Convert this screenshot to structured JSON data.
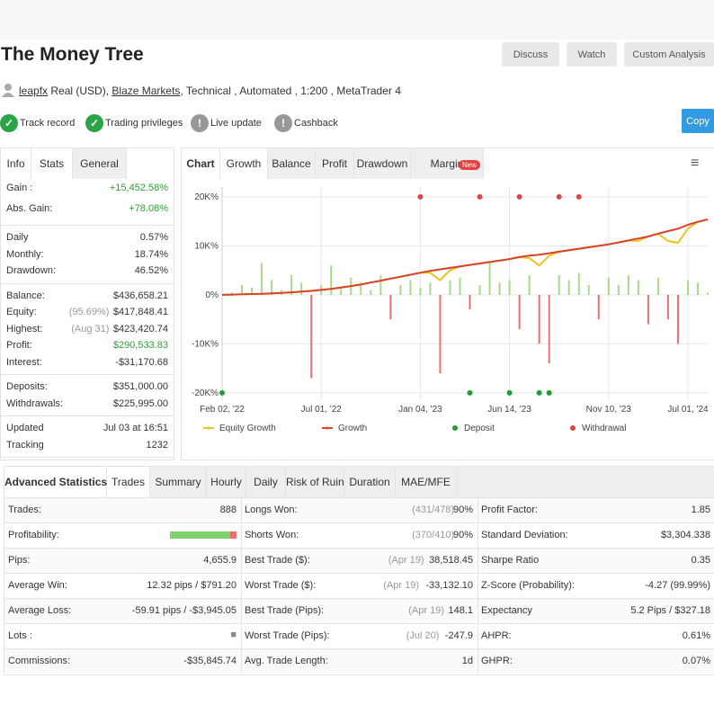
{
  "header": {
    "title": "The Money Tree",
    "buttons": [
      "Discuss",
      "Watch",
      "Custom Analysis"
    ],
    "user": "leapfx",
    "account_before": "Real (USD),",
    "broker": "Blaze Markets",
    "account_after": ", Technical , Automated , 1:200 , MetaTrader 4",
    "badges": [
      "Track record",
      "Trading privileges",
      "Live update",
      "Cashback"
    ],
    "copy": "Copy"
  },
  "stats": {
    "tabs": [
      "Info",
      "Stats",
      "General"
    ],
    "groups": [
      [
        {
          "label": "Gain :",
          "value": "+15,452.58%",
          "color": "#2f9e3a"
        },
        {
          "label": "Abs. Gain:",
          "value": "+78.08%",
          "color": "#2f9e3a"
        }
      ],
      [
        {
          "label": "Daily",
          "value": "0.57%"
        },
        {
          "label": "Monthly:",
          "value": "18.74%"
        },
        {
          "label": "Drawdown:",
          "value": "46.52%"
        }
      ],
      [
        {
          "label": "Balance:",
          "value": "$436,658.21"
        },
        {
          "label": "Equity:",
          "note": "(95.69%)",
          "value": "$417,848.41"
        },
        {
          "label": "Highest:",
          "note": "(Aug 31)",
          "value": "$423,420.74"
        },
        {
          "label": "Profit:",
          "value": "$290,533.83",
          "color": "#2f9e3a"
        },
        {
          "label": "Interest:",
          "value": "-$31,170.68"
        }
      ],
      [
        {
          "label": "Deposits:",
          "value": "$351,000.00"
        },
        {
          "label": "Withdrawals:",
          "value": "$225,995.00"
        }
      ],
      [
        {
          "label": "Updated",
          "value": "Jul 03 at 16:51"
        },
        {
          "label": "Tracking",
          "value": "1232"
        }
      ]
    ]
  },
  "chart_tabs": {
    "label": "Chart",
    "tabs": [
      "Growth",
      "Balance",
      "Profit",
      "Drawdown",
      "Margin"
    ],
    "badge": "New"
  },
  "chart_data": {
    "type": "line",
    "categories": [
      "Feb 02, '22",
      null,
      null,
      null,
      null,
      null,
      null,
      null,
      null,
      null,
      "Jul 01, '22",
      null,
      null,
      null,
      null,
      null,
      null,
      null,
      null,
      null,
      "Jan 04, '23",
      null,
      null,
      null,
      null,
      null,
      null,
      null,
      null,
      "Jun 14, '23",
      null,
      null,
      null,
      null,
      null,
      null,
      null,
      null,
      null,
      "Nov 10, '23",
      null,
      null,
      null,
      null,
      null,
      null,
      null,
      "Jul 01, '24",
      null,
      null
    ],
    "series": [
      {
        "name": "Equity Growth",
        "type": "line",
        "color": "#f2c21b",
        "values": [
          0,
          50,
          100,
          150,
          200,
          300,
          400,
          500,
          650,
          800,
          1000,
          1200,
          1500,
          1800,
          2100,
          2500,
          2900,
          3300,
          3700,
          4100,
          4500,
          4500,
          3000,
          5000,
          5800,
          6100,
          6400,
          6700,
          7000,
          7300,
          7700,
          7500,
          6000,
          8000,
          8800,
          9100,
          9400,
          9700,
          10000,
          10300,
          10700,
          11100,
          11000,
          11900,
          12500,
          11000,
          10600,
          13500,
          14900,
          15400
        ]
      },
      {
        "name": "Growth",
        "type": "line",
        "color": "#d8432a",
        "values": [
          0,
          50,
          100,
          150,
          200,
          300,
          400,
          500,
          650,
          800,
          1000,
          1200,
          1500,
          1800,
          2100,
          2500,
          2900,
          3300,
          3700,
          4100,
          4500,
          4900,
          5200,
          5500,
          5800,
          6100,
          6400,
          6700,
          7000,
          7300,
          7700,
          8000,
          8200,
          8500,
          8800,
          9100,
          9400,
          9700,
          10000,
          10300,
          10700,
          11100,
          11500,
          11900,
          12500,
          13000,
          13500,
          14300,
          14900,
          15400
        ]
      },
      {
        "name": "Deposit",
        "type": "scatter",
        "color": "#1e9e36",
        "values": [
          -20000,
          null,
          null,
          null,
          null,
          null,
          null,
          null,
          null,
          null,
          null,
          null,
          null,
          null,
          null,
          null,
          null,
          null,
          null,
          null,
          null,
          null,
          null,
          null,
          null,
          -20000,
          null,
          null,
          null,
          -20000,
          null,
          null,
          -20000,
          -20000,
          null,
          null,
          null,
          null,
          null,
          null,
          null,
          null,
          null,
          null,
          null,
          null,
          null,
          null,
          null,
          null
        ]
      },
      {
        "name": "Withdrawal",
        "type": "scatter",
        "color": "#e04646",
        "values": [
          null,
          null,
          null,
          null,
          null,
          null,
          null,
          null,
          null,
          null,
          null,
          null,
          null,
          null,
          null,
          null,
          null,
          null,
          null,
          null,
          20000,
          null,
          null,
          null,
          null,
          null,
          20000,
          null,
          null,
          null,
          20000,
          null,
          null,
          null,
          20000,
          null,
          20000,
          null,
          null,
          null,
          null,
          null,
          null,
          null,
          null,
          null,
          null,
          null,
          null,
          null
        ]
      },
      {
        "type": "bar",
        "color": "#a9d98c",
        "negative_color": "#e87070",
        "values": [
          0,
          500,
          2000,
          1500,
          6500,
          3000,
          1000,
          4000,
          2500,
          -17000,
          2000,
          6000,
          1500,
          3500,
          2500,
          1000,
          4000,
          -5000,
          2000,
          3000,
          1500,
          2500,
          -16000,
          3000,
          3500,
          -3000,
          2000,
          6500,
          2500,
          3000,
          -7000,
          4000,
          -10000,
          -14000,
          4000,
          3000,
          4500,
          2000,
          -5000,
          3500,
          2000,
          4000,
          3000,
          -6000,
          3500,
          -5000,
          -10000,
          3000,
          2500,
          500
        ]
      }
    ],
    "ylim": [
      -21500,
      22000
    ],
    "yticks": [
      {
        "value": -20000,
        "label": "-20K%"
      },
      {
        "value": -10000,
        "label": "-10K%"
      },
      {
        "value": 0,
        "label": "0%"
      },
      {
        "value": 10000,
        "label": "10K%"
      },
      {
        "value": 20000,
        "label": "20K%"
      }
    ],
    "grid": true
  },
  "table": {
    "tabs": [
      "Advanced Statistics",
      "Trades",
      "Summary",
      "Hourly",
      "Daily",
      "Risk of Ruin",
      "Duration",
      "MAE/MFE"
    ],
    "rows": [
      [
        {
          "label": "Trades:",
          "value": "888"
        },
        {
          "label": "Longs Won:",
          "note": "(431/478)",
          "value": "90%"
        },
        {
          "label": "Profit Factor:",
          "value": "1.85"
        }
      ],
      [
        {
          "label": "Profitability:",
          "bar": 90
        },
        {
          "label": "Shorts Won:",
          "note": "(370/410)",
          "value": "90%"
        },
        {
          "label": "Standard Deviation:",
          "value": "$3,304.338"
        }
      ],
      [
        {
          "label": "Pips:",
          "value": "4,655.9"
        },
        {
          "label": "Best Trade ($):",
          "note": "(Apr 19)",
          "value": "38,518.45"
        },
        {
          "label": "Sharpe Ratio",
          "value": "0.35"
        }
      ],
      [
        {
          "label": "Average Win:",
          "value": "12.32 pips / $791.20"
        },
        {
          "label": "Worst Trade ($):",
          "note": "(Apr 19)",
          "value": "-33,132.10"
        },
        {
          "label": "Z-Score (Probability):",
          "value": "-4.27 (99.99%)"
        }
      ],
      [
        {
          "label": "Average Loss:",
          "value": "-59.91 pips / -$3,945.05"
        },
        {
          "label": "Best Trade (Pips):",
          "note": "(Apr 19)",
          "value": "148.1"
        },
        {
          "label": "Expectancy",
          "value": "5.2 Pips / $327.18"
        }
      ],
      [
        {
          "label": "Lots :"
        },
        {
          "label": "Worst Trade (Pips):",
          "note": "(Jul 20)",
          "value": "-247.9"
        },
        {
          "label": "AHPR:",
          "value": "0.61%"
        }
      ],
      [
        {
          "label": "Commissions:",
          "value": "-$35,845.74"
        },
        {
          "label": "Avg. Trade Length:",
          "value": "1d"
        },
        {
          "label": "GHPR:",
          "value": "0.07%"
        }
      ]
    ]
  }
}
